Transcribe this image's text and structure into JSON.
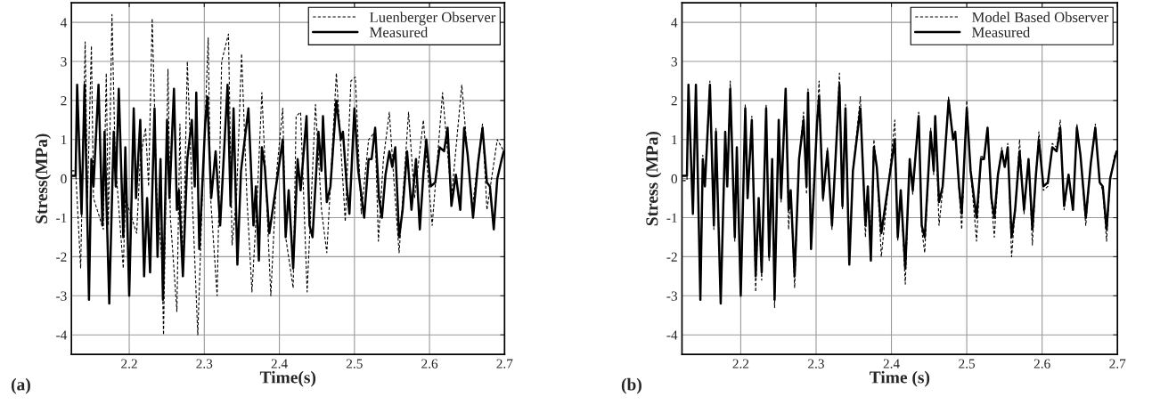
{
  "chart_data": [
    {
      "type": "line",
      "xlabel": "Time(s)",
      "ylabel": "Stress(MPa)",
      "annotations": [
        "(a)"
      ],
      "xlim": [
        2.123,
        2.7
      ],
      "ylim": [
        -4.5,
        4.5
      ],
      "xticks": [
        2.2,
        2.3,
        2.4,
        2.5,
        2.6,
        2.7
      ],
      "yticks": [
        -4,
        -3,
        -2,
        -1,
        0,
        1,
        2,
        3,
        4
      ],
      "grid": true,
      "legend": "top right",
      "series": [
        {
          "name": "Luenberger Observer",
          "color": "#000000",
          "line_style": "dashed",
          "x": [
            2.123,
            2.1286,
            2.1313,
            2.1353,
            2.1413,
            2.1444,
            2.1496,
            2.1524,
            2.1603,
            2.1655,
            2.1694,
            2.1722,
            2.177,
            2.1813,
            2.1861,
            2.1921,
            2.1948,
            2.2052,
            2.2099,
            2.2147,
            2.2191,
            2.2218,
            2.2258,
            2.2306,
            2.2369,
            2.2437,
            2.2457,
            2.2516,
            2.2548,
            2.2635,
            2.2675,
            2.2715,
            2.2774,
            2.2834,
            2.2913,
            2.2973,
            2.3052,
            2.3084,
            2.3171,
            2.3231,
            2.3322,
            2.337,
            2.3429,
            2.3497,
            2.3568,
            2.3635,
            2.3707,
            2.3767,
            2.3886,
            2.3965,
            2.4045,
            2.4084,
            2.4184,
            2.4223,
            2.4283,
            2.437,
            2.4481,
            2.4561,
            2.4632,
            2.4759,
            2.4819,
            2.4878,
            2.4953,
            2.5012,
            2.5091,
            2.5189,
            2.5276,
            2.5319,
            2.5386,
            2.5465,
            2.5524,
            2.5595,
            2.5721,
            2.58,
            2.5918,
            2.6036,
            2.6174,
            2.6292,
            2.643,
            2.6568,
            2.6706,
            2.6765,
            2.6903,
            2.699
          ],
          "values": [
            0.2,
            0.2,
            null,
            -2.3,
            3.5,
            -0.5,
            3.4,
            -0.5,
            null,
            -1.3,
            2.7,
            -1.2,
            4.2,
            0.5,
            null,
            -2.3,
            -0.5,
            null,
            -1.4,
            0.5,
            null,
            1.3,
            -0.2,
            4.1,
            -0.5,
            -2.1,
            -4.0,
            2.8,
            -1.0,
            -3.4,
            1.4,
            -2.5,
            3.0,
            -0.2,
            -4.0,
            -0.5,
            3.6,
            -0.5,
            -3.0,
            3.0,
            3.7,
            -1.7,
            -0.5,
            3.2,
            -0.5,
            -2.9,
            -0.4,
            2.2,
            -3.0,
            0.2,
            1.8,
            -1.5,
            -2.8,
            1.6,
            1.7,
            -2.9,
            1.9,
            -0.8,
            -1.9,
            2.7,
            0.8,
            -1.1,
            2.5,
            2.6,
            -0.9,
            1.0,
            1.2,
            -1.6,
            0.5,
            1.7,
            0.0,
            -1.9,
            1.7,
            -0.5,
            1.5,
            -1.2,
            2.2,
            -0.5,
            2.4,
            -0.8,
            1.4,
            -0.8,
            1.0,
            0.7
          ]
        },
        {
          "name": "Measured",
          "color": "#000000",
          "line_style": "solid",
          "x": [
            2.123,
            2.1286,
            2.1306,
            2.1365,
            2.1405,
            2.1464,
            2.1496,
            2.1524,
            2.1591,
            2.1643,
            2.1671,
            2.1734,
            2.1794,
            2.1821,
            2.1861,
            2.1921,
            2.1948,
            2.2,
            2.206,
            2.2091,
            2.2147,
            2.2198,
            2.2238,
            2.2278,
            2.2337,
            2.2377,
            2.2417,
            2.2449,
            2.2504,
            2.2536,
            2.2596,
            2.2635,
            2.2663,
            2.2715,
            2.2774,
            2.2834,
            2.2873,
            2.2893,
            2.2933,
            2.3012,
            2.304,
            2.3092,
            2.3151,
            2.3211,
            2.331,
            2.335,
            2.339,
            2.3441,
            2.3489,
            2.3588,
            2.3655,
            2.3687,
            2.3727,
            2.3767,
            2.3806,
            2.3866,
            2.4045,
            2.4084,
            2.4124,
            2.4184,
            2.4243,
            2.4283,
            2.4362,
            2.4402,
            2.4442,
            2.4521,
            2.4561,
            2.4581,
            2.4632,
            2.468,
            2.4759,
            2.4819,
            2.4847,
            2.4898,
            2.4933,
            2.5,
            2.5051,
            2.513,
            2.5189,
            2.5229,
            2.5276,
            2.5327,
            2.5366,
            2.5414,
            2.5465,
            2.5504,
            2.5544,
            2.5595,
            2.5642,
            2.5701,
            2.576,
            2.582,
            2.5871,
            2.5918,
            2.5957,
            2.6017,
            2.6076,
            2.6135,
            2.6194,
            2.6241,
            2.6292,
            2.6351,
            2.641,
            2.6462,
            2.6509,
            2.658,
            2.6647,
            2.6706,
            2.6765,
            2.6805,
            2.6856,
            2.6903,
            2.6962,
            2.699
          ],
          "values": [
            0.07,
            0.07,
            2.4,
            -0.9,
            2.4,
            -3.1,
            0.5,
            -0.2,
            2.4,
            -1.2,
            1.2,
            -3.2,
            1.2,
            -0.2,
            2.3,
            -1.5,
            0.8,
            -3.0,
            1.8,
            -0.5,
            1.5,
            -2.5,
            -0.5,
            -2.4,
            1.8,
            -2.0,
            0.5,
            -3.1,
            1.5,
            -0.5,
            2.3,
            -0.8,
            -0.3,
            -2.5,
            0.5,
            1.5,
            -0.2,
            2.2,
            -1.8,
            1.4,
            2.1,
            -0.5,
            0.7,
            -1.2,
            2.4,
            -0.7,
            1.8,
            -2.2,
            0.2,
            1.8,
            -1.2,
            -0.2,
            -2.1,
            0.8,
            0.3,
            -1.4,
            1.0,
            -1.5,
            -0.3,
            -2.3,
            0.5,
            -0.3,
            1.6,
            -1.2,
            -1.5,
            1.2,
            0.2,
            1.6,
            -0.6,
            -0.2,
            2.0,
            1.0,
            1.2,
            -0.2,
            -0.9,
            1.8,
            0.2,
            -1.0,
            0.5,
            0.5,
            1.3,
            -0.5,
            -1.0,
            0.1,
            0.7,
            0.3,
            0.8,
            -1.5,
            -0.8,
            0.7,
            -0.8,
            0.5,
            -1.3,
            0.1,
            1.0,
            -0.2,
            -0.1,
            0.8,
            0.7,
            1.3,
            -0.7,
            0.1,
            -0.8,
            1.3,
            0.6,
            -1.0,
            0.4,
            1.3,
            -0.1,
            -0.2,
            -1.3,
            0.0,
            0.5,
            0.7
          ]
        }
      ]
    },
    {
      "type": "line",
      "xlabel": "Time (s)",
      "ylabel": "Stress (MPa)",
      "annotations": [
        "(b)"
      ],
      "xlim": [
        2.122,
        2.7
      ],
      "ylim": [
        -4.5,
        4.5
      ],
      "xticks": [
        2.2,
        2.3,
        2.4,
        2.5,
        2.6,
        2.7
      ],
      "yticks": [
        -4,
        -3,
        -2,
        -1,
        0,
        1,
        2,
        3,
        4
      ],
      "grid": true,
      "legend": "top right",
      "series": [
        {
          "name": "Model Based Observer",
          "color": "#000000",
          "line_style": "dashed",
          "x": [
            2.123,
            2.1286,
            2.1306,
            2.1365,
            2.1405,
            2.1464,
            2.1496,
            2.1524,
            2.1591,
            2.1643,
            2.1671,
            2.1734,
            2.1794,
            2.1821,
            2.1861,
            2.1921,
            2.1948,
            2.2,
            2.206,
            2.2091,
            2.2147,
            2.2198,
            2.2238,
            2.2278,
            2.2337,
            2.2377,
            2.2417,
            2.2449,
            2.2504,
            2.2536,
            2.2596,
            2.2635,
            2.2663,
            2.2715,
            2.2774,
            2.2834,
            2.2873,
            2.2893,
            2.2933,
            2.3012,
            2.304,
            2.3092,
            2.3151,
            2.3211,
            2.331,
            2.335,
            2.339,
            2.3441,
            2.3489,
            2.3588,
            2.3655,
            2.3687,
            2.3727,
            2.3767,
            2.3806,
            2.3866,
            2.4045,
            2.4084,
            2.4124,
            2.4184,
            2.4243,
            2.4283,
            2.4362,
            2.4402,
            2.4442,
            2.4521,
            2.4561,
            2.4581,
            2.4632,
            2.468,
            2.4759,
            2.4819,
            2.4847,
            2.4898,
            2.4933,
            2.5,
            2.5051,
            2.513,
            2.5189,
            2.5229,
            2.5276,
            2.5327,
            2.5366,
            2.5414,
            2.5465,
            2.5504,
            2.5544,
            2.5595,
            2.5642,
            2.5701,
            2.576,
            2.582,
            2.5871,
            2.5918,
            2.5957,
            2.6017,
            2.6076,
            2.6135,
            2.6194,
            2.6241,
            2.6292,
            2.6351,
            2.641,
            2.6462,
            2.6509,
            2.658,
            2.6647,
            2.6706,
            2.6765,
            2.6805,
            2.6856,
            2.6903,
            2.6962,
            2.699
          ],
          "values": [
            -0.05,
            -0.05,
            2.3,
            -0.8,
            2.3,
            -3.1,
            0.6,
            -0.1,
            2.5,
            -1.3,
            1.3,
            -3.1,
            1.2,
            -0.2,
            2.5,
            -1.6,
            0.8,
            -2.9,
            1.9,
            -0.5,
            1.6,
            -2.9,
            -0.5,
            -2.6,
            1.9,
            -2.1,
            0.5,
            -3.3,
            1.5,
            -0.6,
            2.3,
            -1.3,
            -0.3,
            -2.8,
            0.5,
            1.7,
            -0.4,
            2.3,
            -1.6,
            1.5,
            2.5,
            -0.6,
            0.8,
            -1.3,
            2.7,
            -0.8,
            1.9,
            -2.0,
            0.2,
            2.1,
            -1.5,
            -0.2,
            -1.6,
            1.0,
            0.3,
            -2.0,
            1.5,
            -1.6,
            -0.3,
            -2.7,
            0.5,
            -0.4,
            1.7,
            -1.3,
            -1.9,
            1.3,
            0.1,
            1.6,
            -1.2,
            -0.3,
            2.1,
            1.0,
            1.2,
            -0.3,
            -1.3,
            2.0,
            0.2,
            -1.6,
            0.6,
            0.5,
            1.3,
            -0.6,
            -1.5,
            0.1,
            0.8,
            0.3,
            0.9,
            -2.0,
            -0.8,
            1.0,
            -0.9,
            0.5,
            -1.7,
            0.1,
            1.2,
            -0.3,
            -0.2,
            0.9,
            0.8,
            1.5,
            -0.8,
            0.1,
            -0.8,
            1.4,
            0.6,
            -1.2,
            0.4,
            1.4,
            -0.1,
            -0.3,
            -1.6,
            0.0,
            0.6,
            0.7
          ]
        },
        {
          "name": "Measured",
          "color": "#000000",
          "line_style": "solid",
          "x": [
            2.123,
            2.1286,
            2.1306,
            2.1365,
            2.1405,
            2.1464,
            2.1496,
            2.1524,
            2.1591,
            2.1643,
            2.1671,
            2.1734,
            2.1794,
            2.1821,
            2.1861,
            2.1921,
            2.1948,
            2.2,
            2.206,
            2.2091,
            2.2147,
            2.2198,
            2.2238,
            2.2278,
            2.2337,
            2.2377,
            2.2417,
            2.2449,
            2.2504,
            2.2536,
            2.2596,
            2.2635,
            2.2663,
            2.2715,
            2.2774,
            2.2834,
            2.2873,
            2.2893,
            2.2933,
            2.3012,
            2.304,
            2.3092,
            2.3151,
            2.3211,
            2.331,
            2.335,
            2.339,
            2.3441,
            2.3489,
            2.3588,
            2.3655,
            2.3687,
            2.3727,
            2.3767,
            2.3806,
            2.3866,
            2.4045,
            2.4084,
            2.4124,
            2.4184,
            2.4243,
            2.4283,
            2.4362,
            2.4402,
            2.4442,
            2.4521,
            2.4561,
            2.4581,
            2.4632,
            2.468,
            2.4759,
            2.4819,
            2.4847,
            2.4898,
            2.4933,
            2.5,
            2.5051,
            2.513,
            2.5189,
            2.5229,
            2.5276,
            2.5327,
            2.5366,
            2.5414,
            2.5465,
            2.5504,
            2.5544,
            2.5595,
            2.5642,
            2.5701,
            2.576,
            2.582,
            2.5871,
            2.5918,
            2.5957,
            2.6017,
            2.6076,
            2.6135,
            2.6194,
            2.6241,
            2.6292,
            2.6351,
            2.641,
            2.6462,
            2.6509,
            2.658,
            2.6647,
            2.6706,
            2.6765,
            2.6805,
            2.6856,
            2.6903,
            2.6962,
            2.699
          ],
          "values": [
            0.07,
            0.07,
            2.4,
            -0.9,
            2.4,
            -3.1,
            0.5,
            -0.2,
            2.4,
            -1.2,
            1.2,
            -3.2,
            1.2,
            -0.2,
            2.3,
            -1.5,
            0.8,
            -3.0,
            1.8,
            -0.5,
            1.5,
            -2.5,
            -0.5,
            -2.4,
            1.8,
            -2.0,
            0.5,
            -3.1,
            1.5,
            -0.5,
            2.3,
            -0.8,
            -0.3,
            -2.5,
            0.5,
            1.5,
            -0.2,
            2.2,
            -1.8,
            1.4,
            2.1,
            -0.5,
            0.7,
            -1.2,
            2.4,
            -0.7,
            1.8,
            -2.2,
            0.2,
            1.8,
            -1.2,
            -0.2,
            -2.1,
            0.8,
            0.3,
            -1.4,
            1.0,
            -1.5,
            -0.3,
            -2.3,
            0.5,
            -0.3,
            1.6,
            -1.2,
            -1.5,
            1.2,
            0.2,
            1.6,
            -0.6,
            -0.2,
            2.0,
            1.0,
            1.2,
            -0.2,
            -0.9,
            1.8,
            0.2,
            -1.0,
            0.5,
            0.5,
            1.3,
            -0.5,
            -1.0,
            0.1,
            0.7,
            0.3,
            0.8,
            -1.5,
            -0.8,
            0.7,
            -0.8,
            0.5,
            -1.3,
            0.1,
            1.0,
            -0.2,
            -0.1,
            0.8,
            0.7,
            1.3,
            -0.7,
            0.1,
            -0.8,
            1.3,
            0.6,
            -1.0,
            0.4,
            1.3,
            -0.1,
            -0.2,
            -1.3,
            0.0,
            0.5,
            0.7
          ]
        }
      ]
    }
  ]
}
